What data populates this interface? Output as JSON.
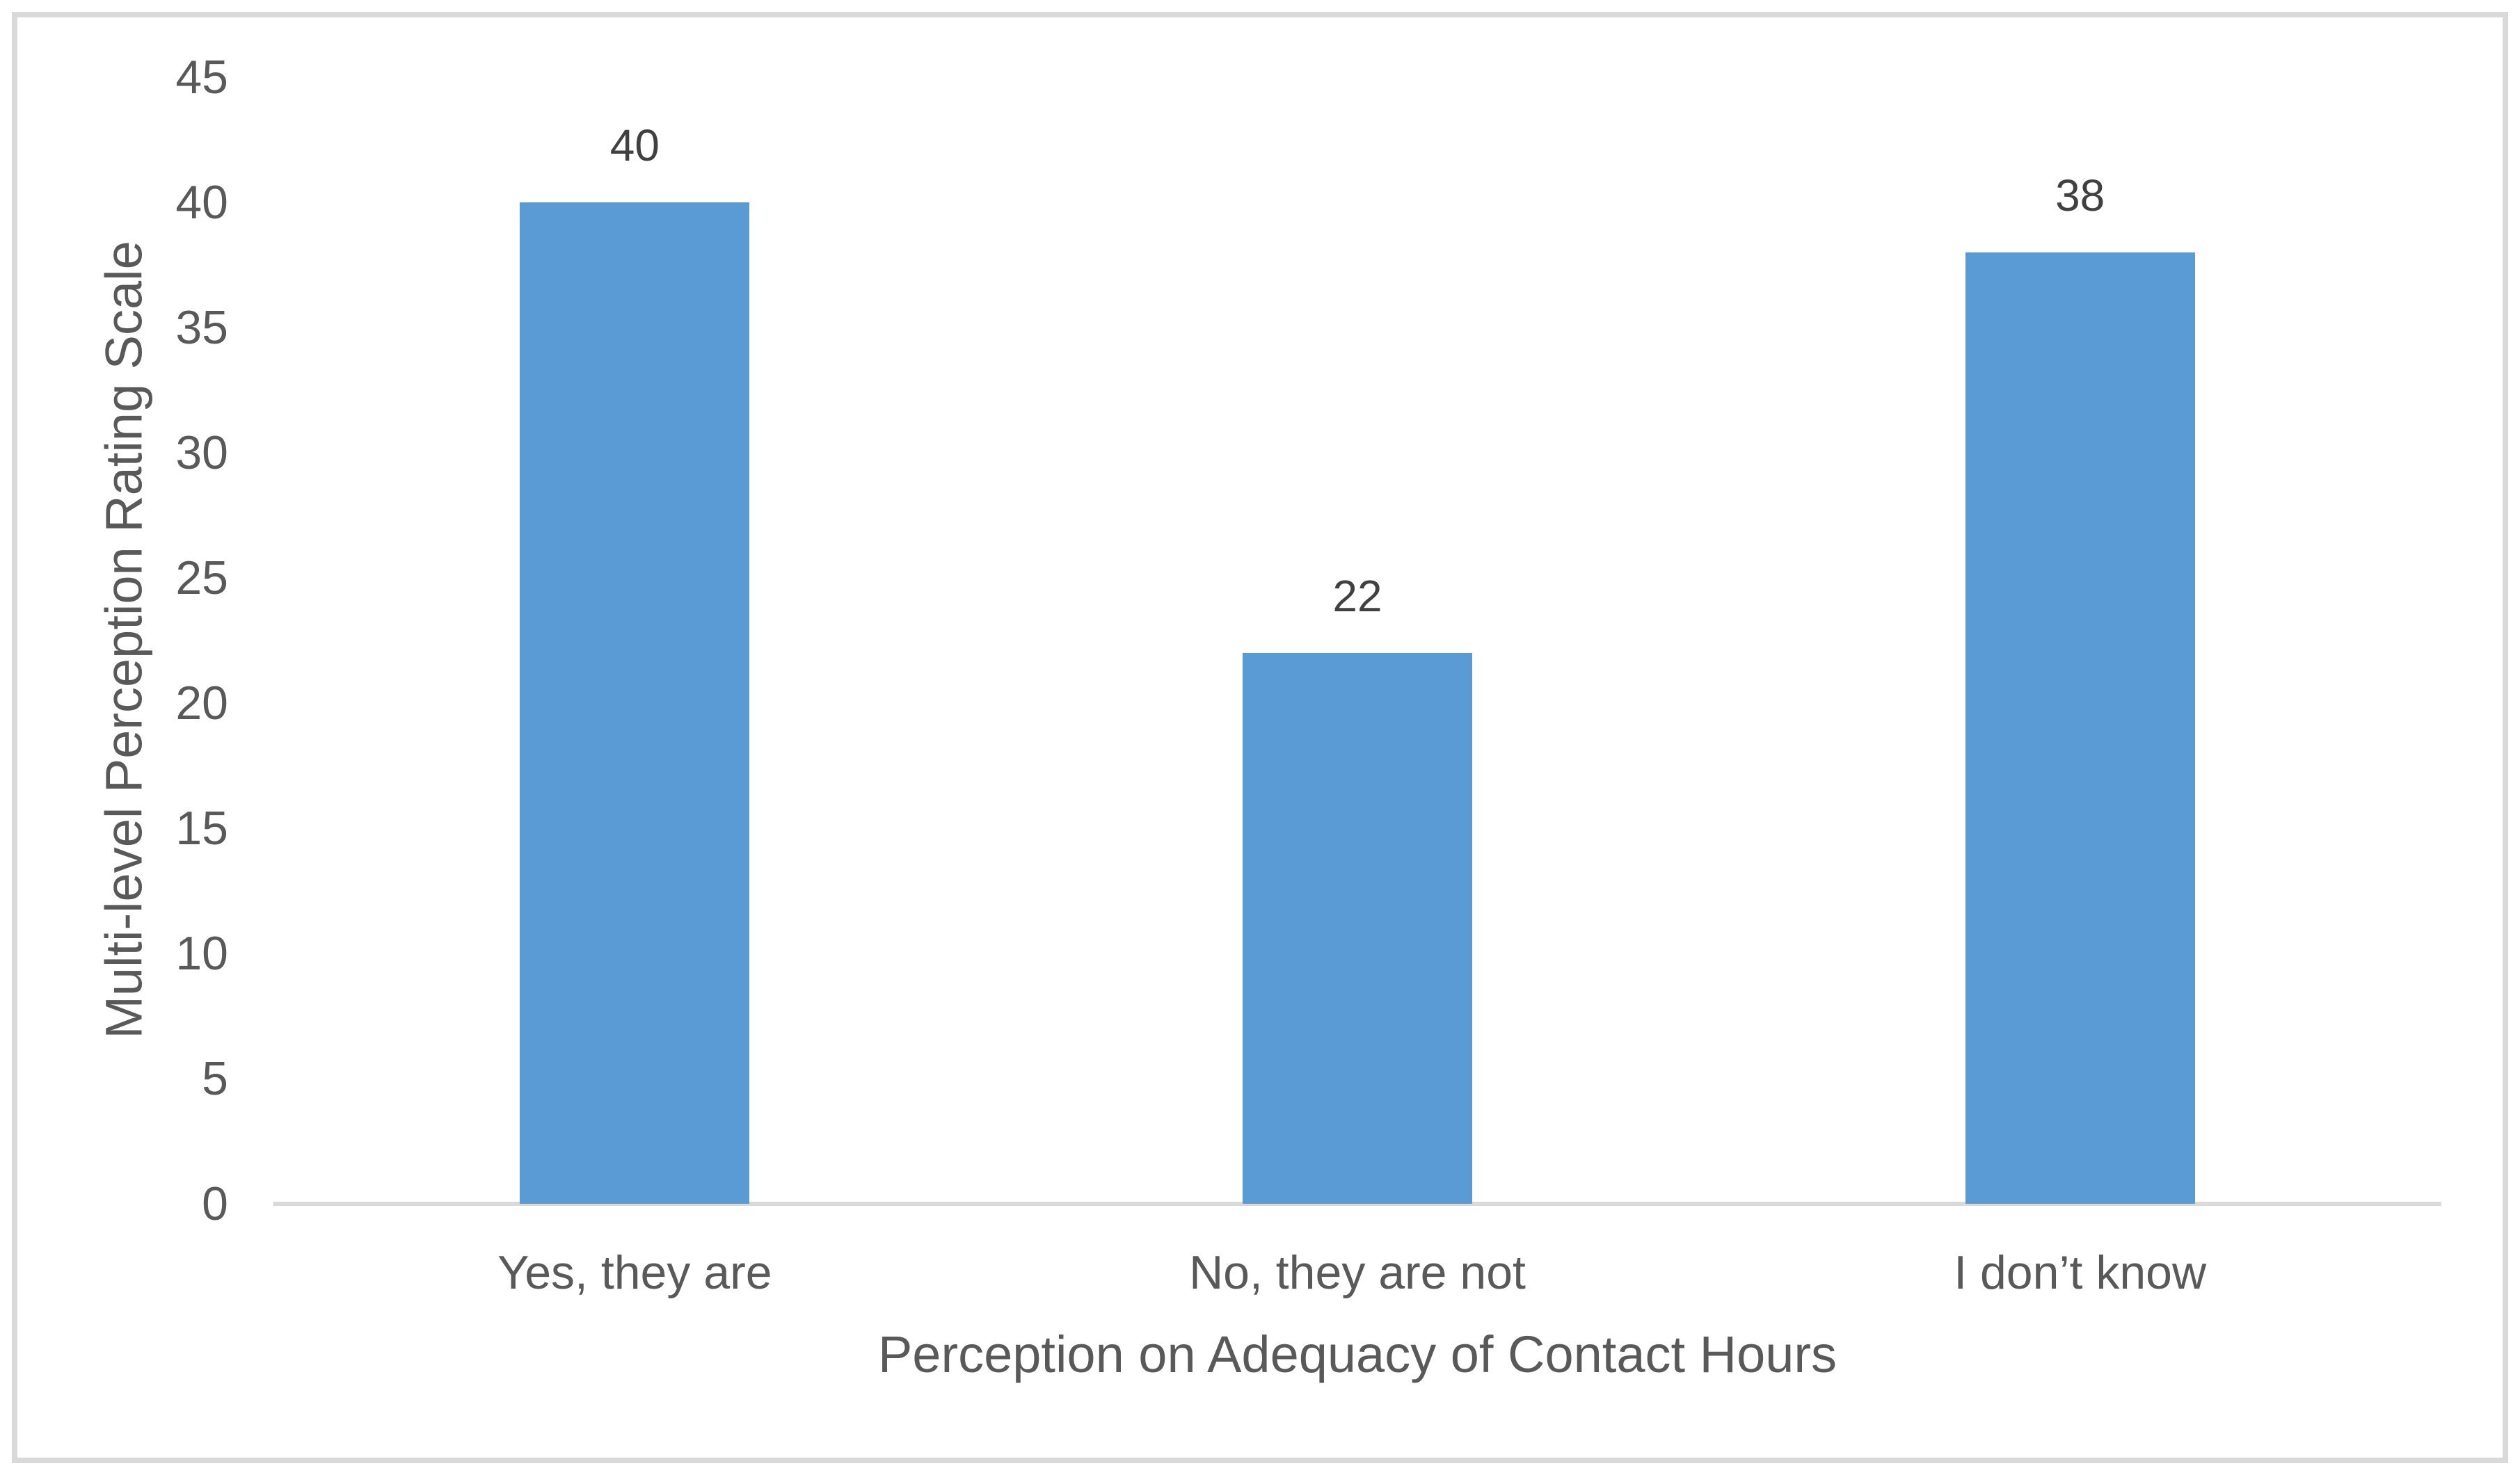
{
  "chart_data": {
    "type": "bar",
    "title": "",
    "categories": [
      "Yes, they are",
      "No, they are not",
      "I don’t know"
    ],
    "values": [
      40,
      22,
      38
    ],
    "data_labels": [
      "40",
      "22",
      "38"
    ],
    "xlabel": "Perception on Adequacy of Contact Hours",
    "ylabel": "Multi-level Perception Rating Scale",
    "ylim": [
      0,
      45
    ],
    "yticks": [
      0,
      5,
      10,
      15,
      20,
      25,
      30,
      35,
      40,
      45
    ],
    "grid": false,
    "legend": "none",
    "bar_color": "#5b9bd5",
    "axis_line_color": "#d9d9d9",
    "frame_border_color": "#d9d9d9",
    "tick_label_color": "#595959",
    "category_label_color": "#595959",
    "data_label_color": "#404040",
    "background_color": "#ffffff"
  }
}
